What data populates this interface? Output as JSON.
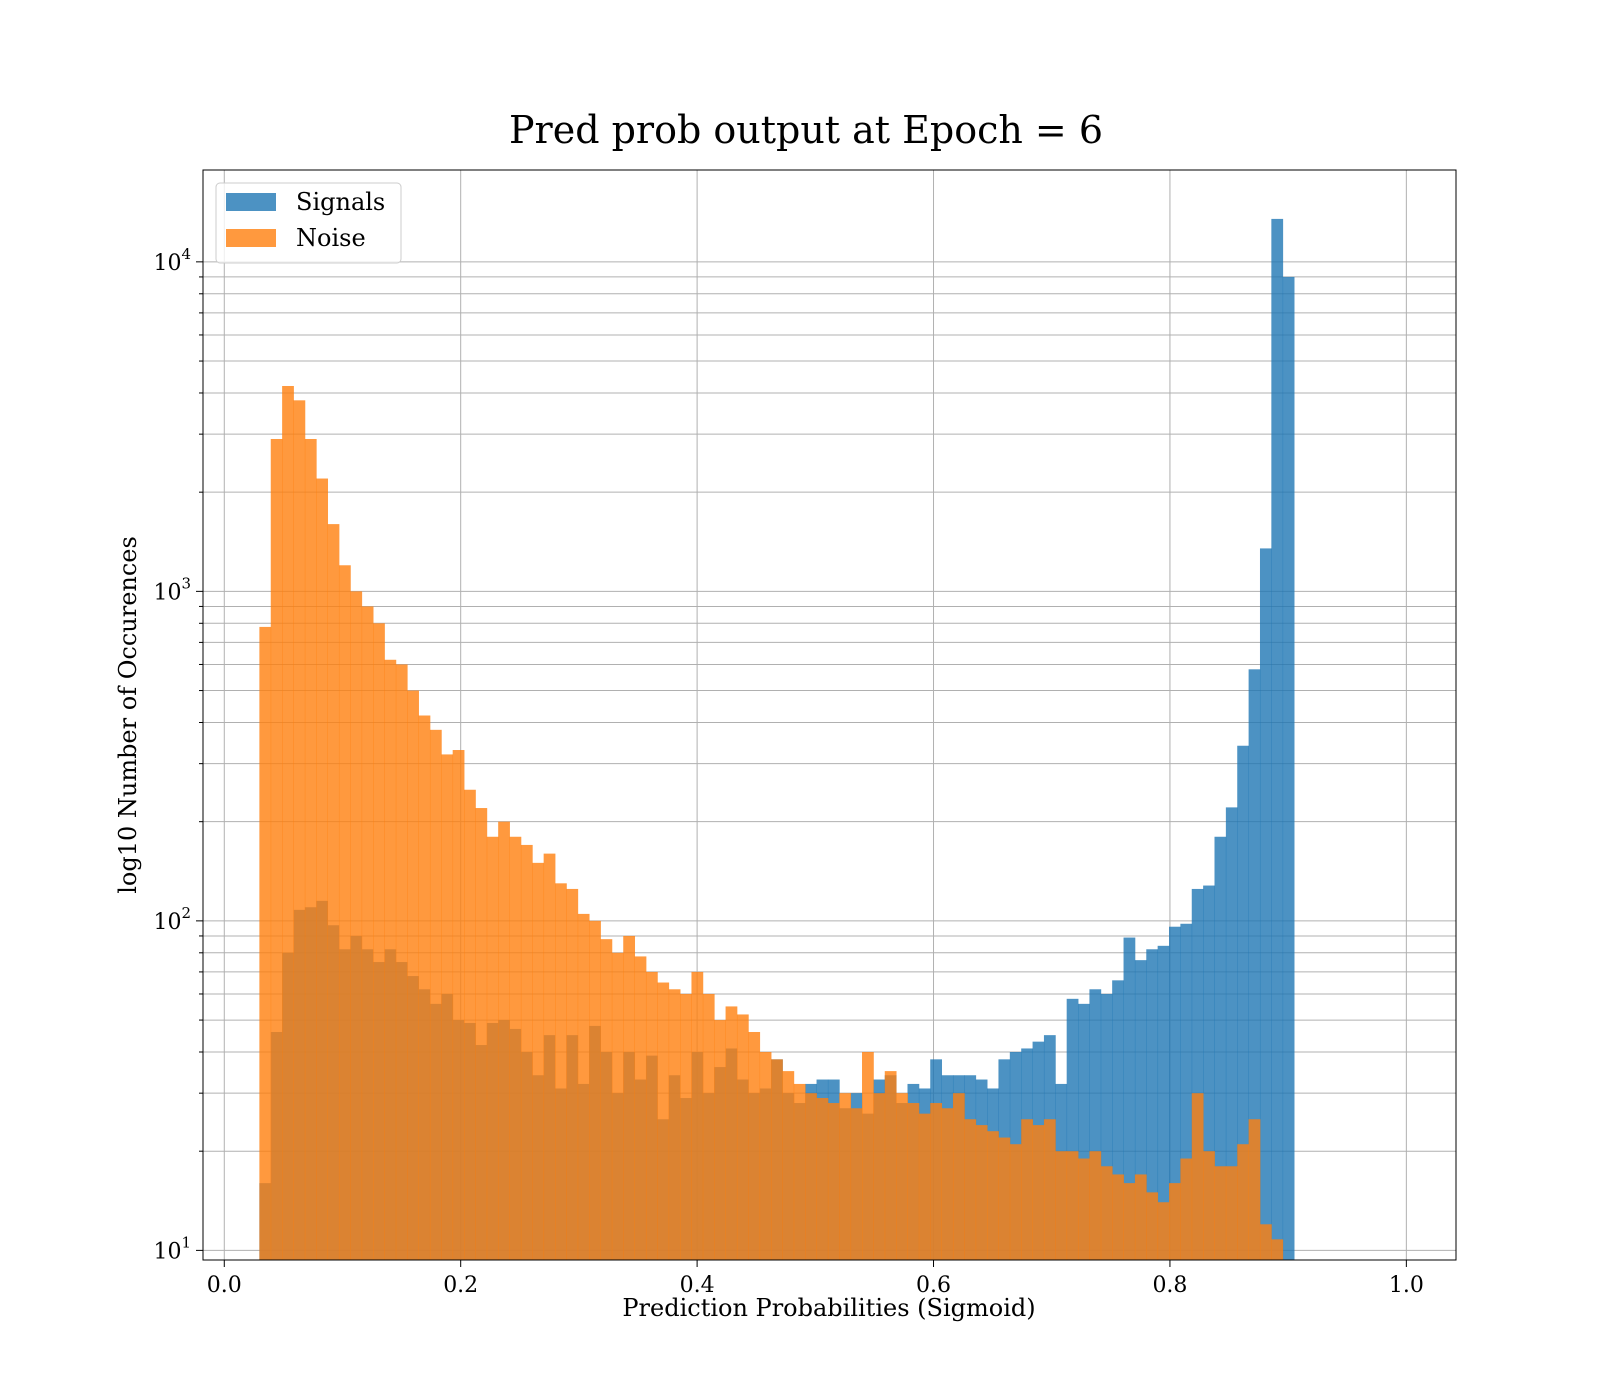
{
  "chart_data": {
    "type": "histogram",
    "title": "Pred prob output at Epoch = 6",
    "xlabel": "Prediction Probabilities (Sigmoid)",
    "ylabel": "log10 Number of Occurences",
    "xlim": [
      -0.018,
      1.042
    ],
    "ylim": [
      9.35,
      19000
    ],
    "yscale": "log",
    "grid": true,
    "legend_position": "upper-left",
    "x_ticks": [
      0.0,
      0.2,
      0.4,
      0.6,
      0.8,
      1.0
    ],
    "x_tick_labels": [
      "0.0",
      "0.2",
      "0.4",
      "0.6",
      "0.8",
      "1.0"
    ],
    "y_ticks": [
      {
        "value": 10,
        "base": "10",
        "exp": "1"
      },
      {
        "value": 100,
        "base": "10",
        "exp": "2"
      },
      {
        "value": 1000,
        "base": "10",
        "exp": "3"
      },
      {
        "value": 10000,
        "base": "10",
        "exp": "4"
      }
    ],
    "colors": {
      "Signals": "#1f77b4",
      "Noise": "#ff7f0e"
    },
    "series": [
      {
        "name": "Signals",
        "opacity": 0.8,
        "bin_start": 0.0297,
        "bin_width": 0.009619,
        "counts": [
          16,
          46,
          80,
          108,
          110,
          115,
          97,
          82,
          90,
          82,
          75,
          82,
          75,
          68,
          62,
          56,
          60,
          50,
          49,
          42,
          49,
          50,
          47,
          40,
          34,
          45,
          31,
          45,
          32,
          48,
          40,
          30,
          40,
          33,
          39,
          25,
          34,
          29,
          40,
          30,
          36,
          41,
          33,
          30,
          31,
          38,
          30,
          28,
          32,
          33,
          33,
          27,
          30,
          26,
          33,
          34,
          28,
          32,
          31,
          38,
          34,
          34,
          34,
          33,
          31,
          38,
          40,
          41,
          43,
          45,
          32,
          58,
          56,
          62,
          60,
          66,
          89,
          76,
          82,
          84,
          96,
          98,
          125,
          128,
          180,
          221,
          340,
          580,
          1350,
          13500,
          9000
        ]
      },
      {
        "name": "Noise",
        "opacity": 0.8,
        "bin_start": 0.0297,
        "bin_width": 0.009619,
        "counts": [
          780,
          2900,
          4200,
          3800,
          2900,
          2200,
          1600,
          1200,
          1000,
          900,
          800,
          620,
          600,
          500,
          420,
          380,
          320,
          330,
          250,
          220,
          180,
          200,
          180,
          170,
          150,
          160,
          130,
          125,
          105,
          100,
          88,
          80,
          90,
          78,
          70,
          65,
          62,
          60,
          70,
          60,
          50,
          55,
          52,
          46,
          40,
          38,
          35,
          32,
          30,
          29,
          28,
          30,
          27,
          40,
          30,
          35,
          30,
          28,
          26,
          28,
          27,
          30,
          25,
          24,
          23,
          22,
          21,
          25,
          24,
          25,
          20,
          20,
          19,
          20,
          18,
          17,
          16,
          17,
          15,
          14,
          16,
          19,
          30,
          20,
          18,
          18,
          21,
          25,
          12,
          10.8
        ]
      }
    ]
  }
}
